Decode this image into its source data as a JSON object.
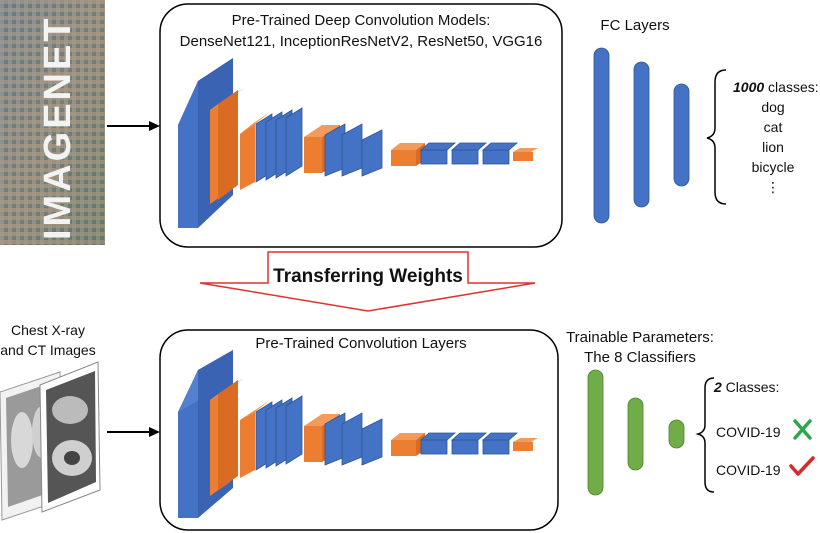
{
  "top_panel": {
    "title_line1": "Pre-Trained Deep Convolution Models:",
    "title_line2": "DenseNet121, InceptionResNetV2, ResNet50, VGG16"
  },
  "imagenet_logo": {
    "text": "IMAGENET"
  },
  "fc_layers": {
    "label": "FC Layers"
  },
  "top_classes": {
    "count": "1000",
    "count_suffix": " classes:",
    "items": [
      "dog",
      "cat",
      "lion",
      "bicycle",
      "⋮"
    ]
  },
  "transfer": {
    "label": "Transferring Weights"
  },
  "input": {
    "label_line1": "Chest X-ray",
    "label_line2": "and CT Images"
  },
  "bottom_panel": {
    "title": "Pre-Trained Convolution Layers"
  },
  "trainable": {
    "label_line1": "Trainable Parameters:",
    "label_line2": "The 8 Classifiers"
  },
  "bottom_classes": {
    "count": "2",
    "count_suffix": " Classes:",
    "items": [
      {
        "label": "COVID-19",
        "mark": "cross-icon"
      },
      {
        "label": "COVID-19",
        "mark": "check-icon"
      }
    ]
  },
  "colors": {
    "blue": "#4472c4",
    "blue_dark": "#2f5597",
    "orange": "#ed7d31",
    "green": "#70ad47",
    "red_arrow": "#e03030",
    "cross": "#2aa84a",
    "check": "#d9282b"
  }
}
